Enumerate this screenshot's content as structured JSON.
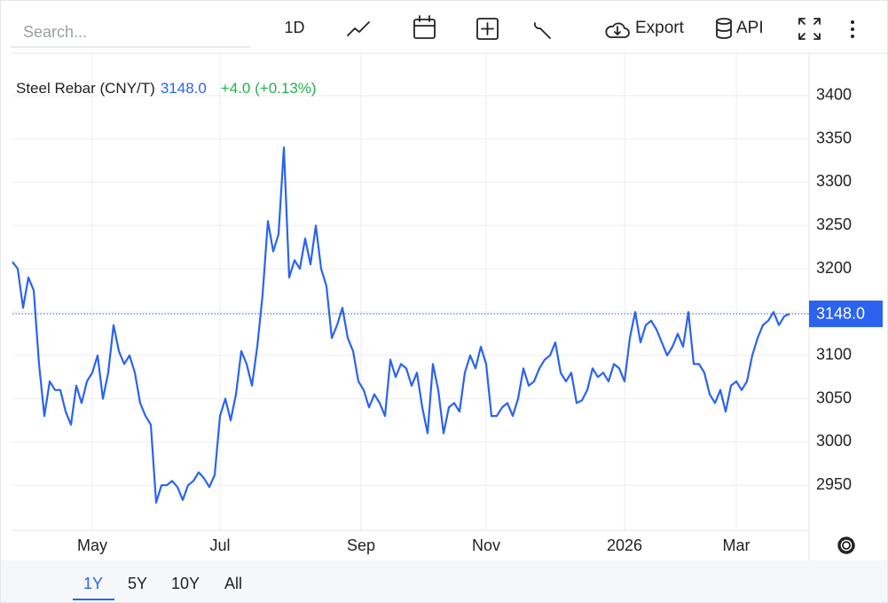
{
  "toolbar": {
    "search_placeholder": "Search...",
    "interval": "1D",
    "export": "Export",
    "api": "API"
  },
  "ranges": [
    "1Y",
    "5Y",
    "10Y",
    "All"
  ],
  "chart_data": {
    "type": "line",
    "title": "Steel Rebar (CNY/T)",
    "change_label": "+4.0 (+0.13%)",
    "last_price": {
      "value": 3148,
      "label": "3148.0"
    },
    "color": "#2b63f0",
    "grid": true,
    "xlim": [
      0,
      146
    ],
    "xticks": [
      {
        "value": 15,
        "label": "May"
      },
      {
        "value": 39,
        "label": "Jul"
      },
      {
        "value": 65.5,
        "label": "Sep"
      },
      {
        "value": 89,
        "label": "Nov"
      },
      {
        "value": 115,
        "label": "2026"
      },
      {
        "value": 136,
        "label": "Mar"
      }
    ],
    "ylim": [
      2898,
      3449
    ],
    "yticks": [
      2950,
      3000,
      3050,
      3100,
      3150,
      3200,
      3250,
      3300,
      3350,
      3400
    ],
    "values": [
      3208,
      3200,
      3155,
      3190,
      3175,
      3090,
      3030,
      3070,
      3060,
      3060,
      3035,
      3020,
      3065,
      3045,
      3070,
      3080,
      3100,
      3050,
      3080,
      3135,
      3105,
      3090,
      3100,
      3080,
      3045,
      3030,
      3020,
      2930,
      2950,
      2950,
      2955,
      2948,
      2933,
      2950,
      2955,
      2965,
      2958,
      2948,
      2962,
      3030,
      3050,
      3025,
      3055,
      3105,
      3090,
      3065,
      3110,
      3170,
      3255,
      3220,
      3240,
      3340,
      3190,
      3210,
      3200,
      3235,
      3205,
      3250,
      3200,
      3180,
      3120,
      3135,
      3155,
      3120,
      3105,
      3070,
      3060,
      3040,
      3055,
      3045,
      3030,
      3095,
      3075,
      3090,
      3085,
      3065,
      3080,
      3040,
      3010,
      3090,
      3060,
      3010,
      3040,
      3045,
      3035,
      3080,
      3100,
      3085,
      3110,
      3090,
      3030,
      3030,
      3040,
      3045,
      3030,
      3050,
      3085,
      3065,
      3070,
      3085,
      3095,
      3100,
      3115,
      3080,
      3070,
      3080,
      3045,
      3048,
      3060,
      3085,
      3075,
      3080,
      3070,
      3090,
      3085,
      3070,
      3120,
      3150,
      3115,
      3135,
      3140,
      3130,
      3115,
      3100,
      3110,
      3125,
      3110,
      3150,
      3090,
      3090,
      3080,
      3055,
      3045,
      3060,
      3035,
      3065,
      3070,
      3060,
      3070,
      3100,
      3120,
      3135,
      3140,
      3150,
      3135,
      3145,
      3148
    ]
  }
}
